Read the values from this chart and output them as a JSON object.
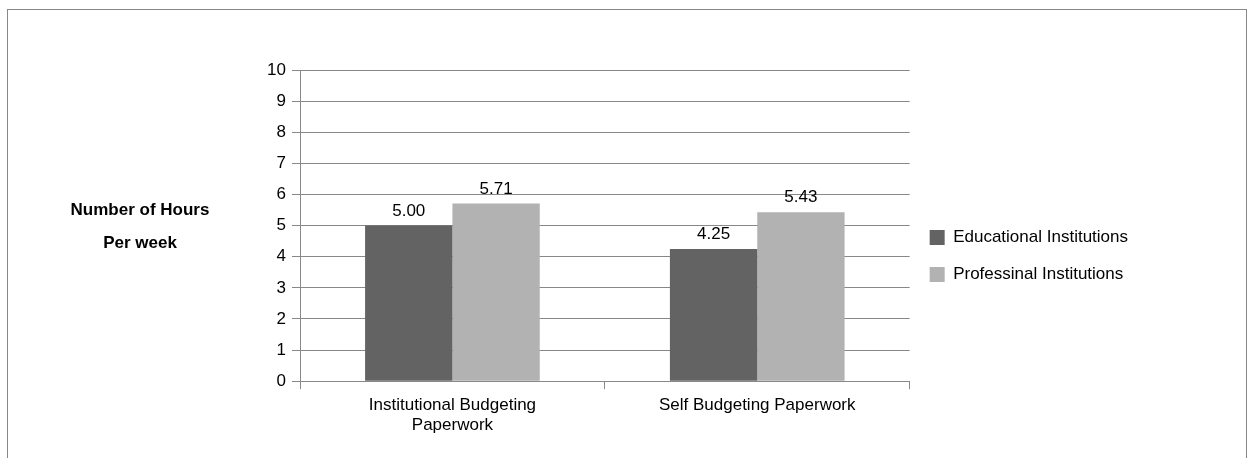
{
  "chart_data": {
    "type": "bar",
    "ylabel": "Number of Hours Per week",
    "categories": [
      "Institutional Budgeting Paperwork",
      "Self Budgeting Paperwork"
    ],
    "series": [
      {
        "name": "Educational Institutions",
        "color": "#636363",
        "values": [
          5.0,
          4.25
        ],
        "value_labels": [
          "5.00",
          "4.25"
        ]
      },
      {
        "name": "Professinal Institutions",
        "color": "#b2b2b2",
        "values": [
          5.71,
          5.43
        ],
        "value_labels": [
          "5.71",
          "5.43"
        ]
      }
    ],
    "ylim": [
      0,
      10
    ],
    "yticks": [
      0,
      1,
      2,
      3,
      4,
      5,
      6,
      7,
      8,
      9,
      10
    ],
    "grid": "y",
    "legend": "right"
  }
}
